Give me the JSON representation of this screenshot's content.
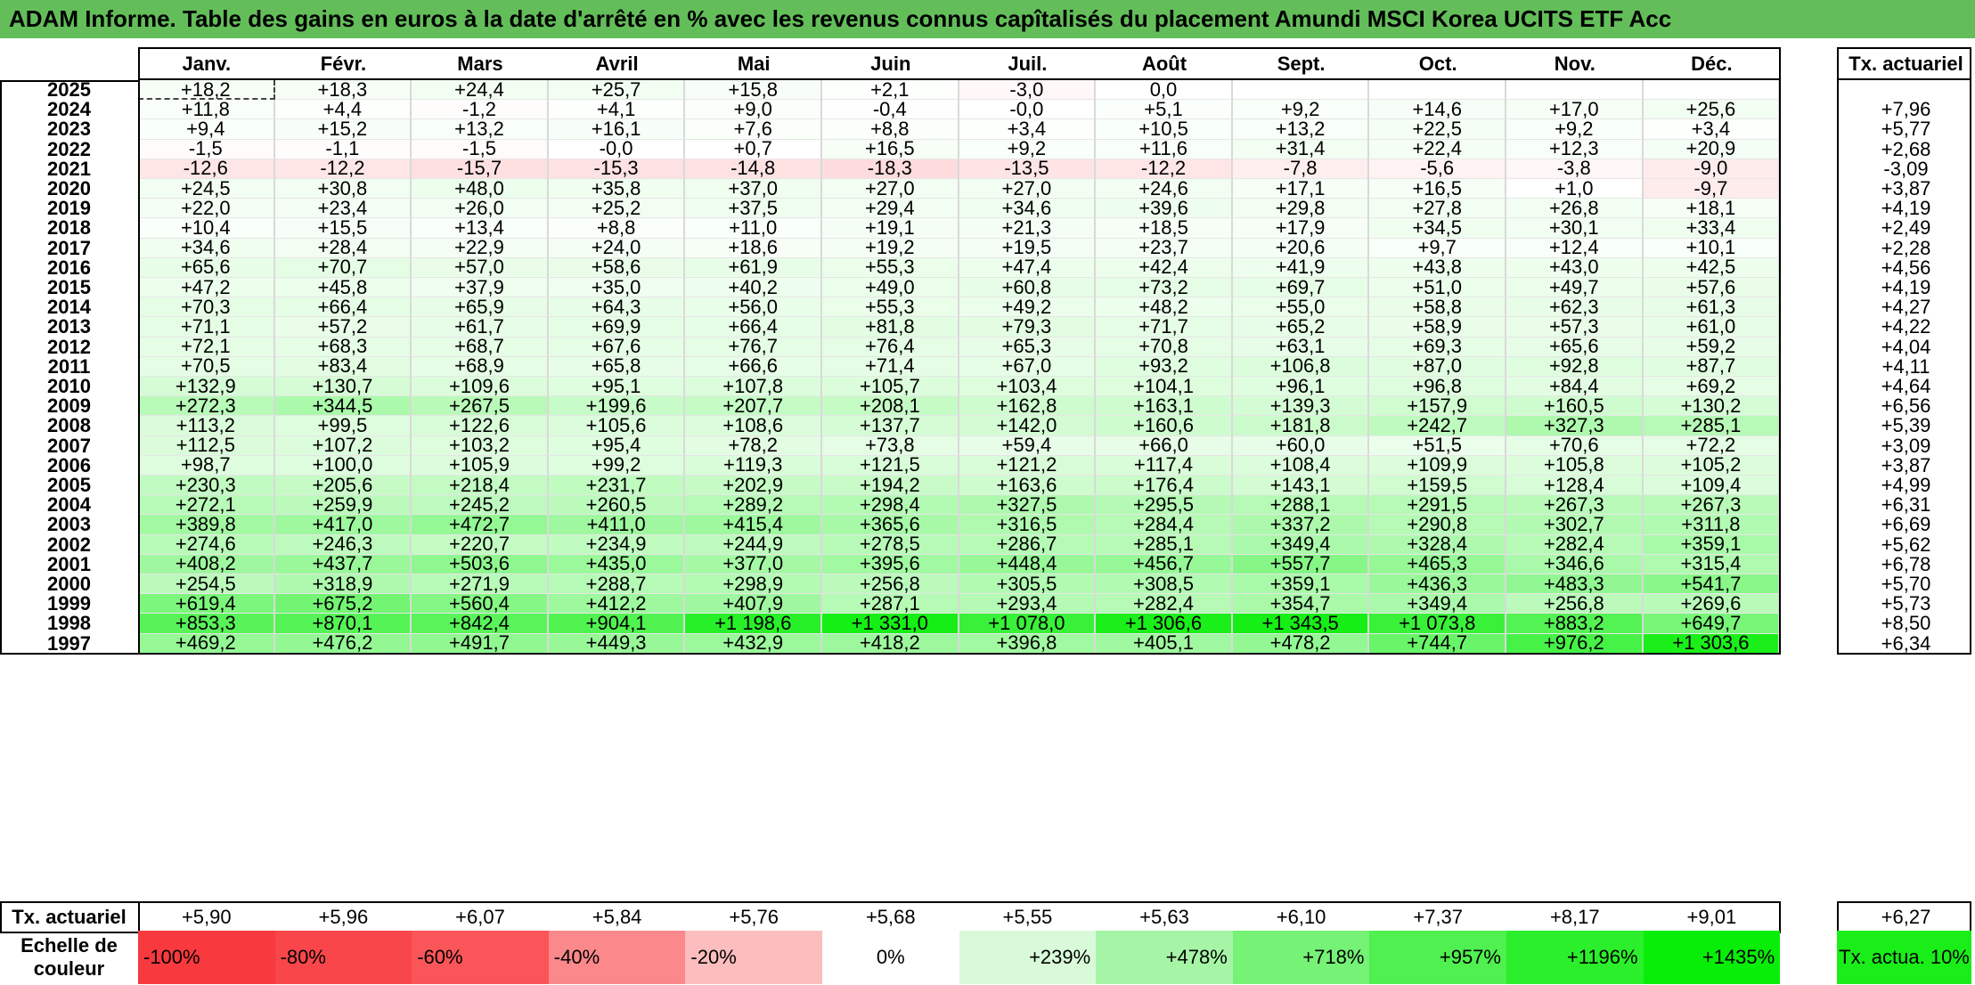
{
  "title": "ADAM Informe. Table des gains en euros à la date d'arrêté en % avec les revenus connus capîtalisés du placement Amundi MSCI Korea UCITS ETF Acc",
  "months": [
    "Janv.",
    "Févr.",
    "Mars",
    "Avril",
    "Mai",
    "Juin",
    "Juil.",
    "Août",
    "Sept.",
    "Oct.",
    "Nov.",
    "Déc."
  ],
  "rate_header": "Tx. actuariel",
  "footer_label": "Tx. actuariel",
  "rows": [
    {
      "year": "2025",
      "values": [
        "+18,2",
        "+18,3",
        "+24,4",
        "+25,7",
        "+15,8",
        "+2,1",
        "-3,0",
        "0,0",
        "",
        "",
        "",
        ""
      ],
      "rate": ""
    },
    {
      "year": "2024",
      "values": [
        "+11,8",
        "+4,4",
        "-1,2",
        "+4,1",
        "+9,0",
        "-0,4",
        "-0,0",
        "+5,1",
        "+9,2",
        "+14,6",
        "+17,0",
        "+25,6"
      ],
      "rate": "+7,96"
    },
    {
      "year": "2023",
      "values": [
        "+9,4",
        "+15,2",
        "+13,2",
        "+16,1",
        "+7,6",
        "+8,8",
        "+3,4",
        "+10,5",
        "+13,2",
        "+22,5",
        "+9,2",
        "+3,4"
      ],
      "rate": "+5,77"
    },
    {
      "year": "2022",
      "values": [
        "-1,5",
        "-1,1",
        "-1,5",
        "-0,0",
        "+0,7",
        "+16,5",
        "+9,2",
        "+11,6",
        "+31,4",
        "+22,4",
        "+12,3",
        "+20,9"
      ],
      "rate": "+2,68"
    },
    {
      "year": "2021",
      "values": [
        "-12,6",
        "-12,2",
        "-15,7",
        "-15,3",
        "-14,8",
        "-18,3",
        "-13,5",
        "-12,2",
        "-7,8",
        "-5,6",
        "-3,8",
        "-9,0"
      ],
      "rate": "-3,09"
    },
    {
      "year": "2020",
      "values": [
        "+24,5",
        "+30,8",
        "+48,0",
        "+35,8",
        "+37,0",
        "+27,0",
        "+27,0",
        "+24,6",
        "+17,1",
        "+16,5",
        "+1,0",
        "-9,7"
      ],
      "rate": "+3,87"
    },
    {
      "year": "2019",
      "values": [
        "+22,0",
        "+23,4",
        "+26,0",
        "+25,2",
        "+37,5",
        "+29,4",
        "+34,6",
        "+39,6",
        "+29,8",
        "+27,8",
        "+26,8",
        "+18,1"
      ],
      "rate": "+4,19"
    },
    {
      "year": "2018",
      "values": [
        "+10,4",
        "+15,5",
        "+13,4",
        "+8,8",
        "+11,0",
        "+19,1",
        "+21,3",
        "+18,5",
        "+17,9",
        "+34,5",
        "+30,1",
        "+33,4"
      ],
      "rate": "+2,49"
    },
    {
      "year": "2017",
      "values": [
        "+34,6",
        "+28,4",
        "+22,9",
        "+24,0",
        "+18,6",
        "+19,2",
        "+19,5",
        "+23,7",
        "+20,6",
        "+9,7",
        "+12,4",
        "+10,1"
      ],
      "rate": "+2,28"
    },
    {
      "year": "2016",
      "values": [
        "+65,6",
        "+70,7",
        "+57,0",
        "+58,6",
        "+61,9",
        "+55,3",
        "+47,4",
        "+42,4",
        "+41,9",
        "+43,8",
        "+43,0",
        "+42,5"
      ],
      "rate": "+4,56"
    },
    {
      "year": "2015",
      "values": [
        "+47,2",
        "+45,8",
        "+37,9",
        "+35,0",
        "+40,2",
        "+49,0",
        "+60,8",
        "+73,2",
        "+69,7",
        "+51,0",
        "+49,7",
        "+57,6"
      ],
      "rate": "+4,19"
    },
    {
      "year": "2014",
      "values": [
        "+70,3",
        "+66,4",
        "+65,9",
        "+64,3",
        "+56,0",
        "+55,3",
        "+49,2",
        "+48,2",
        "+55,0",
        "+58,8",
        "+62,3",
        "+61,3"
      ],
      "rate": "+4,27"
    },
    {
      "year": "2013",
      "values": [
        "+71,1",
        "+57,2",
        "+61,7",
        "+69,9",
        "+66,4",
        "+81,8",
        "+79,3",
        "+71,7",
        "+65,2",
        "+58,9",
        "+57,3",
        "+61,0"
      ],
      "rate": "+4,22"
    },
    {
      "year": "2012",
      "values": [
        "+72,1",
        "+68,3",
        "+68,7",
        "+67,6",
        "+76,7",
        "+76,4",
        "+65,3",
        "+70,8",
        "+63,1",
        "+69,3",
        "+65,6",
        "+59,2"
      ],
      "rate": "+4,04"
    },
    {
      "year": "2011",
      "values": [
        "+70,5",
        "+83,4",
        "+68,9",
        "+65,8",
        "+66,6",
        "+71,4",
        "+67,0",
        "+93,2",
        "+106,8",
        "+87,0",
        "+92,8",
        "+87,7"
      ],
      "rate": "+4,11"
    },
    {
      "year": "2010",
      "values": [
        "+132,9",
        "+130,7",
        "+109,6",
        "+95,1",
        "+107,8",
        "+105,7",
        "+103,4",
        "+104,1",
        "+96,1",
        "+96,8",
        "+84,4",
        "+69,2"
      ],
      "rate": "+4,64"
    },
    {
      "year": "2009",
      "values": [
        "+272,3",
        "+344,5",
        "+267,5",
        "+199,6",
        "+207,7",
        "+208,1",
        "+162,8",
        "+163,1",
        "+139,3",
        "+157,9",
        "+160,5",
        "+130,2"
      ],
      "rate": "+6,56"
    },
    {
      "year": "2008",
      "values": [
        "+113,2",
        "+99,5",
        "+122,6",
        "+105,6",
        "+108,6",
        "+137,7",
        "+142,0",
        "+160,6",
        "+181,8",
        "+242,7",
        "+327,3",
        "+285,1"
      ],
      "rate": "+5,39"
    },
    {
      "year": "2007",
      "values": [
        "+112,5",
        "+107,2",
        "+103,2",
        "+95,4",
        "+78,2",
        "+73,8",
        "+59,4",
        "+66,0",
        "+60,0",
        "+51,5",
        "+70,6",
        "+72,2"
      ],
      "rate": "+3,09"
    },
    {
      "year": "2006",
      "values": [
        "+98,7",
        "+100,0",
        "+105,9",
        "+99,2",
        "+119,3",
        "+121,5",
        "+121,2",
        "+117,4",
        "+108,4",
        "+109,9",
        "+105,8",
        "+105,2"
      ],
      "rate": "+3,87"
    },
    {
      "year": "2005",
      "values": [
        "+230,3",
        "+205,6",
        "+218,4",
        "+231,7",
        "+202,9",
        "+194,2",
        "+163,6",
        "+176,4",
        "+143,1",
        "+159,5",
        "+128,4",
        "+109,4"
      ],
      "rate": "+4,99"
    },
    {
      "year": "2004",
      "values": [
        "+272,1",
        "+259,9",
        "+245,2",
        "+260,5",
        "+289,2",
        "+298,4",
        "+327,5",
        "+295,5",
        "+288,1",
        "+291,5",
        "+267,3",
        "+267,3"
      ],
      "rate": "+6,31"
    },
    {
      "year": "2003",
      "values": [
        "+389,8",
        "+417,0",
        "+472,7",
        "+411,0",
        "+415,4",
        "+365,6",
        "+316,5",
        "+284,4",
        "+337,2",
        "+290,8",
        "+302,7",
        "+311,8"
      ],
      "rate": "+6,69"
    },
    {
      "year": "2002",
      "values": [
        "+274,6",
        "+246,3",
        "+220,7",
        "+234,9",
        "+244,9",
        "+278,5",
        "+286,7",
        "+285,1",
        "+349,4",
        "+328,4",
        "+282,4",
        "+359,1"
      ],
      "rate": "+5,62"
    },
    {
      "year": "2001",
      "values": [
        "+408,2",
        "+437,7",
        "+503,6",
        "+435,0",
        "+377,0",
        "+395,6",
        "+448,4",
        "+456,7",
        "+557,7",
        "+465,3",
        "+346,6",
        "+315,4"
      ],
      "rate": "+6,78"
    },
    {
      "year": "2000",
      "values": [
        "+254,5",
        "+318,9",
        "+271,9",
        "+288,7",
        "+298,9",
        "+256,8",
        "+305,5",
        "+308,5",
        "+359,1",
        "+436,3",
        "+483,3",
        "+541,7"
      ],
      "rate": "+5,70"
    },
    {
      "year": "1999",
      "values": [
        "+619,4",
        "+675,2",
        "+560,4",
        "+412,2",
        "+407,9",
        "+287,1",
        "+293,4",
        "+282,4",
        "+354,7",
        "+349,4",
        "+256,8",
        "+269,6"
      ],
      "rate": "+5,73"
    },
    {
      "year": "1998",
      "values": [
        "+853,3",
        "+870,1",
        "+842,4",
        "+904,1",
        "+1 198,6",
        "+1 331,0",
        "+1 078,0",
        "+1 306,6",
        "+1 343,5",
        "+1 073,8",
        "+883,2",
        "+649,7"
      ],
      "rate": "+8,50"
    },
    {
      "year": "1997",
      "values": [
        "+469,2",
        "+476,2",
        "+491,7",
        "+449,3",
        "+432,9",
        "+418,2",
        "+396,8",
        "+405,1",
        "+478,2",
        "+744,7",
        "+976,2",
        "+1 303,6"
      ],
      "rate": "+6,34"
    }
  ],
  "footer_values": [
    "+5,90",
    "+5,96",
    "+6,07",
    "+5,84",
    "+5,76",
    "+5,68",
    "+5,55",
    "+5,63",
    "+6,10",
    "+7,37",
    "+8,17",
    "+9,01"
  ],
  "footer_rate": "+6,27",
  "scale_label": "Echelle de couleur",
  "scale": [
    {
      "label": "-100%",
      "color": "#f8393e"
    },
    {
      "label": "-80%",
      "color": "#f9464b"
    },
    {
      "label": "-60%",
      "color": "#fa5559"
    },
    {
      "label": "-40%",
      "color": "#fb888b"
    },
    {
      "label": "-20%",
      "color": "#fcbdbe"
    },
    {
      "label": "0%",
      "color": "#ffffff"
    },
    {
      "label": "+239%",
      "color": "#d9fad9"
    },
    {
      "label": "+478%",
      "color": "#a6f5a6"
    },
    {
      "label": "+718%",
      "color": "#76f276"
    },
    {
      "label": "+957%",
      "color": "#4ff04f"
    },
    {
      "label": "+1196%",
      "color": "#2aef2a"
    },
    {
      "label": "+1435%",
      "color": "#09ee09"
    }
  ],
  "scale_rate_label": "Tx. actua. 10%",
  "scale_rate_color": "#19ee19"
}
